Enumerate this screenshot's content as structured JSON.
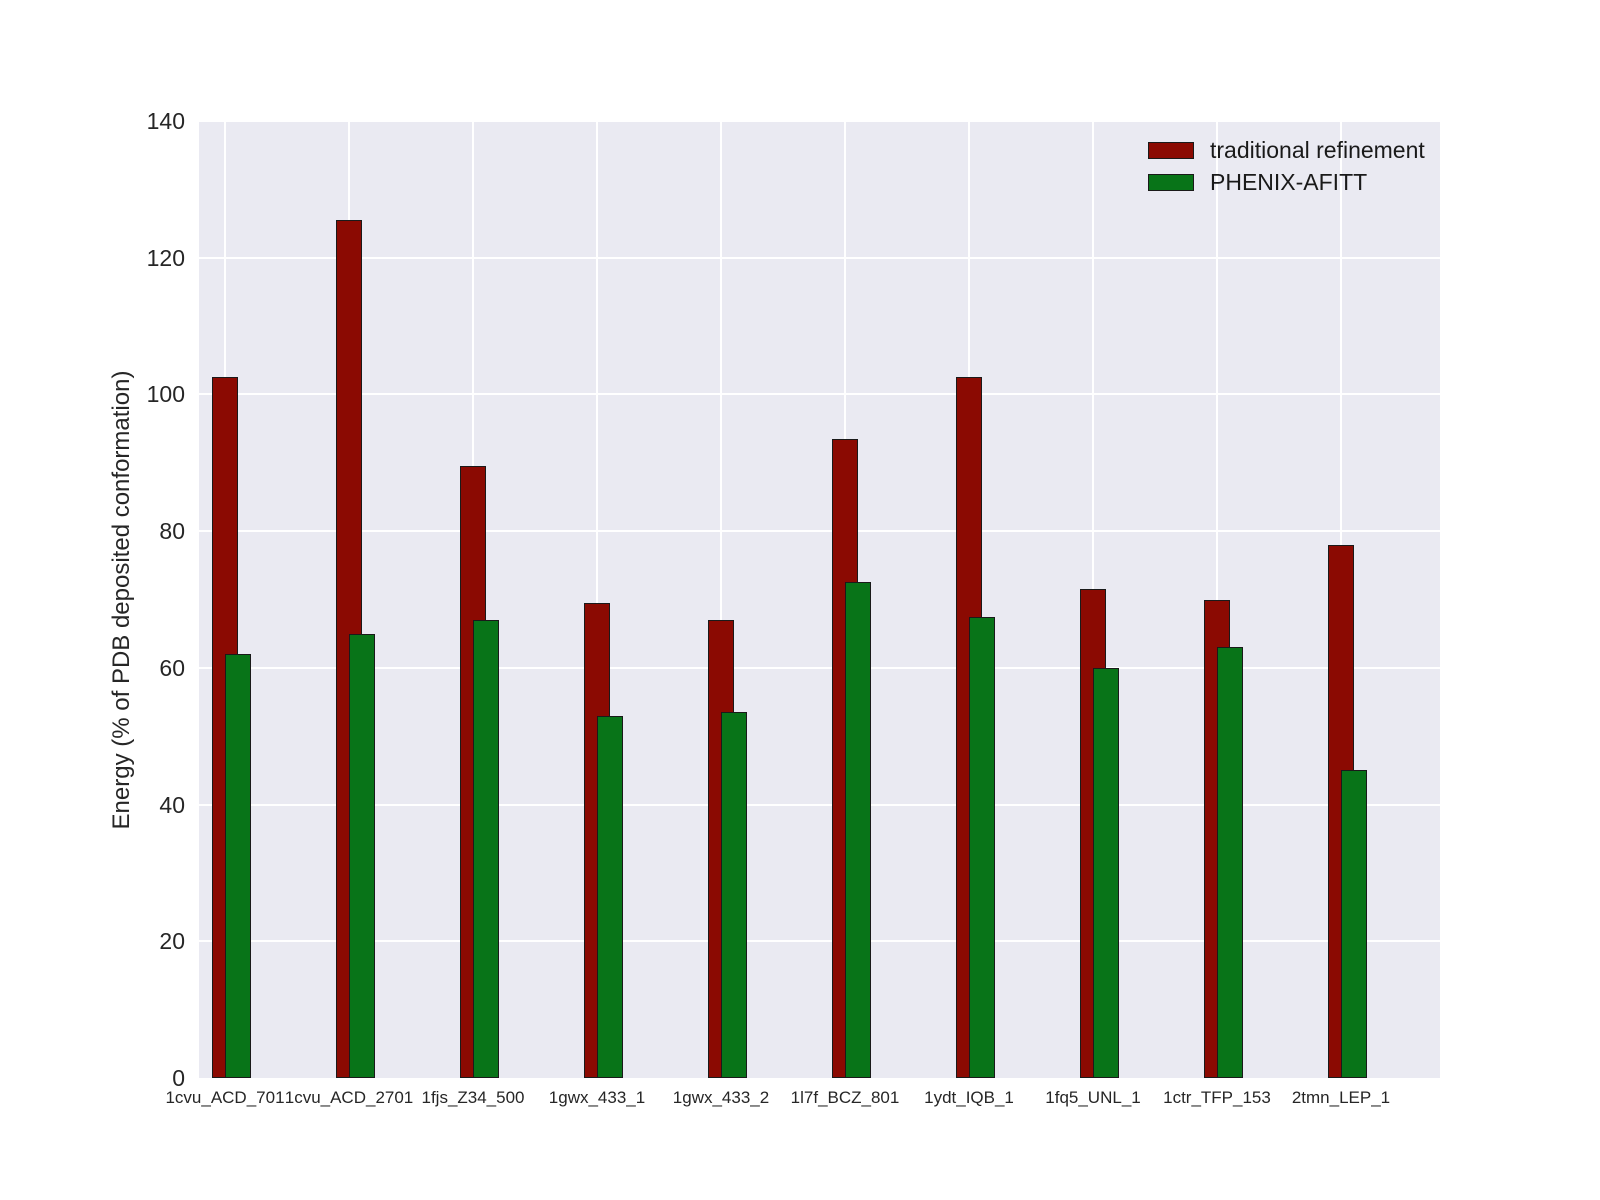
{
  "figure": {
    "background": "#ffffff",
    "plot_background": "#eaeaf2",
    "gridline_color": "#ffffff",
    "text_color": "#262626",
    "bar_edge_color": "#1a1a1a"
  },
  "chart_data": {
    "type": "bar",
    "title": "",
    "xlabel": "",
    "ylabel": "Energy (% of PDB deposited conformation)",
    "ylim": [
      0,
      140
    ],
    "yticks": [
      0,
      20,
      40,
      60,
      80,
      100,
      120,
      140
    ],
    "grid": "both",
    "legend_position": "upper-right",
    "categories": [
      "1cvu_ACD_701",
      "1cvu_ACD_2701",
      "1fjs_Z34_500",
      "1gwx_433_1",
      "1gwx_433_2",
      "1l7f_BCZ_801",
      "1ydt_IQB_1",
      "1fq5_UNL_1",
      "1ctr_TFP_153",
      "2tmn_LEP_1"
    ],
    "series": [
      {
        "name": "traditional refinement",
        "color": "#8b0a02",
        "values": [
          102.5,
          125.5,
          89.5,
          69.5,
          67,
          93.5,
          102.5,
          71.5,
          70,
          78
        ]
      },
      {
        "name": "PHENIX-AFITT",
        "color": "#087418",
        "values": [
          62,
          65,
          67,
          53,
          53.5,
          72.5,
          67.5,
          60,
          63,
          45
        ]
      }
    ]
  }
}
